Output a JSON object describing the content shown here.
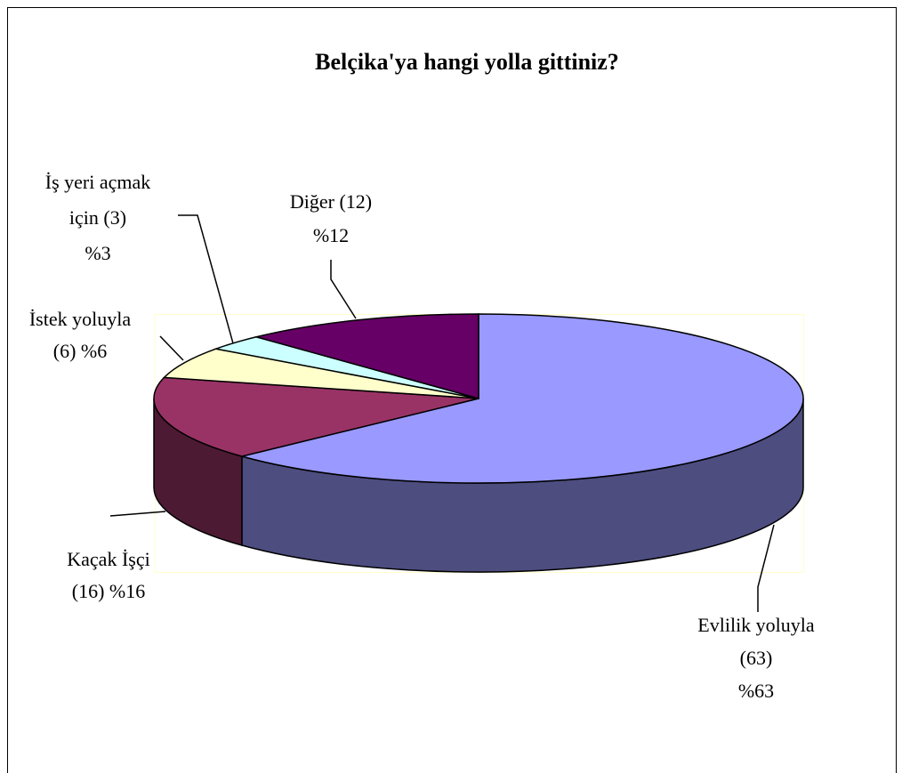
{
  "chart_data": {
    "type": "pie3d",
    "title": "Belçika'ya hangi yolla gittiniz?",
    "labels": [
      [
        "Evlilik yoluyla",
        "(63)",
        "%63"
      ],
      [
        "Kaçak İşçi",
        "(16) %16"
      ],
      [
        "İstek yoluyla",
        "(6) %6"
      ],
      [
        "İş yeri açmak",
        "için (3)",
        "%3"
      ],
      [
        "Diğer (12)",
        "%12"
      ]
    ],
    "values": [
      63,
      16,
      6,
      3,
      12
    ],
    "colors": [
      "#9999ff",
      "#993366",
      "#ffffcc",
      "#ccffff",
      "#660066"
    ]
  }
}
